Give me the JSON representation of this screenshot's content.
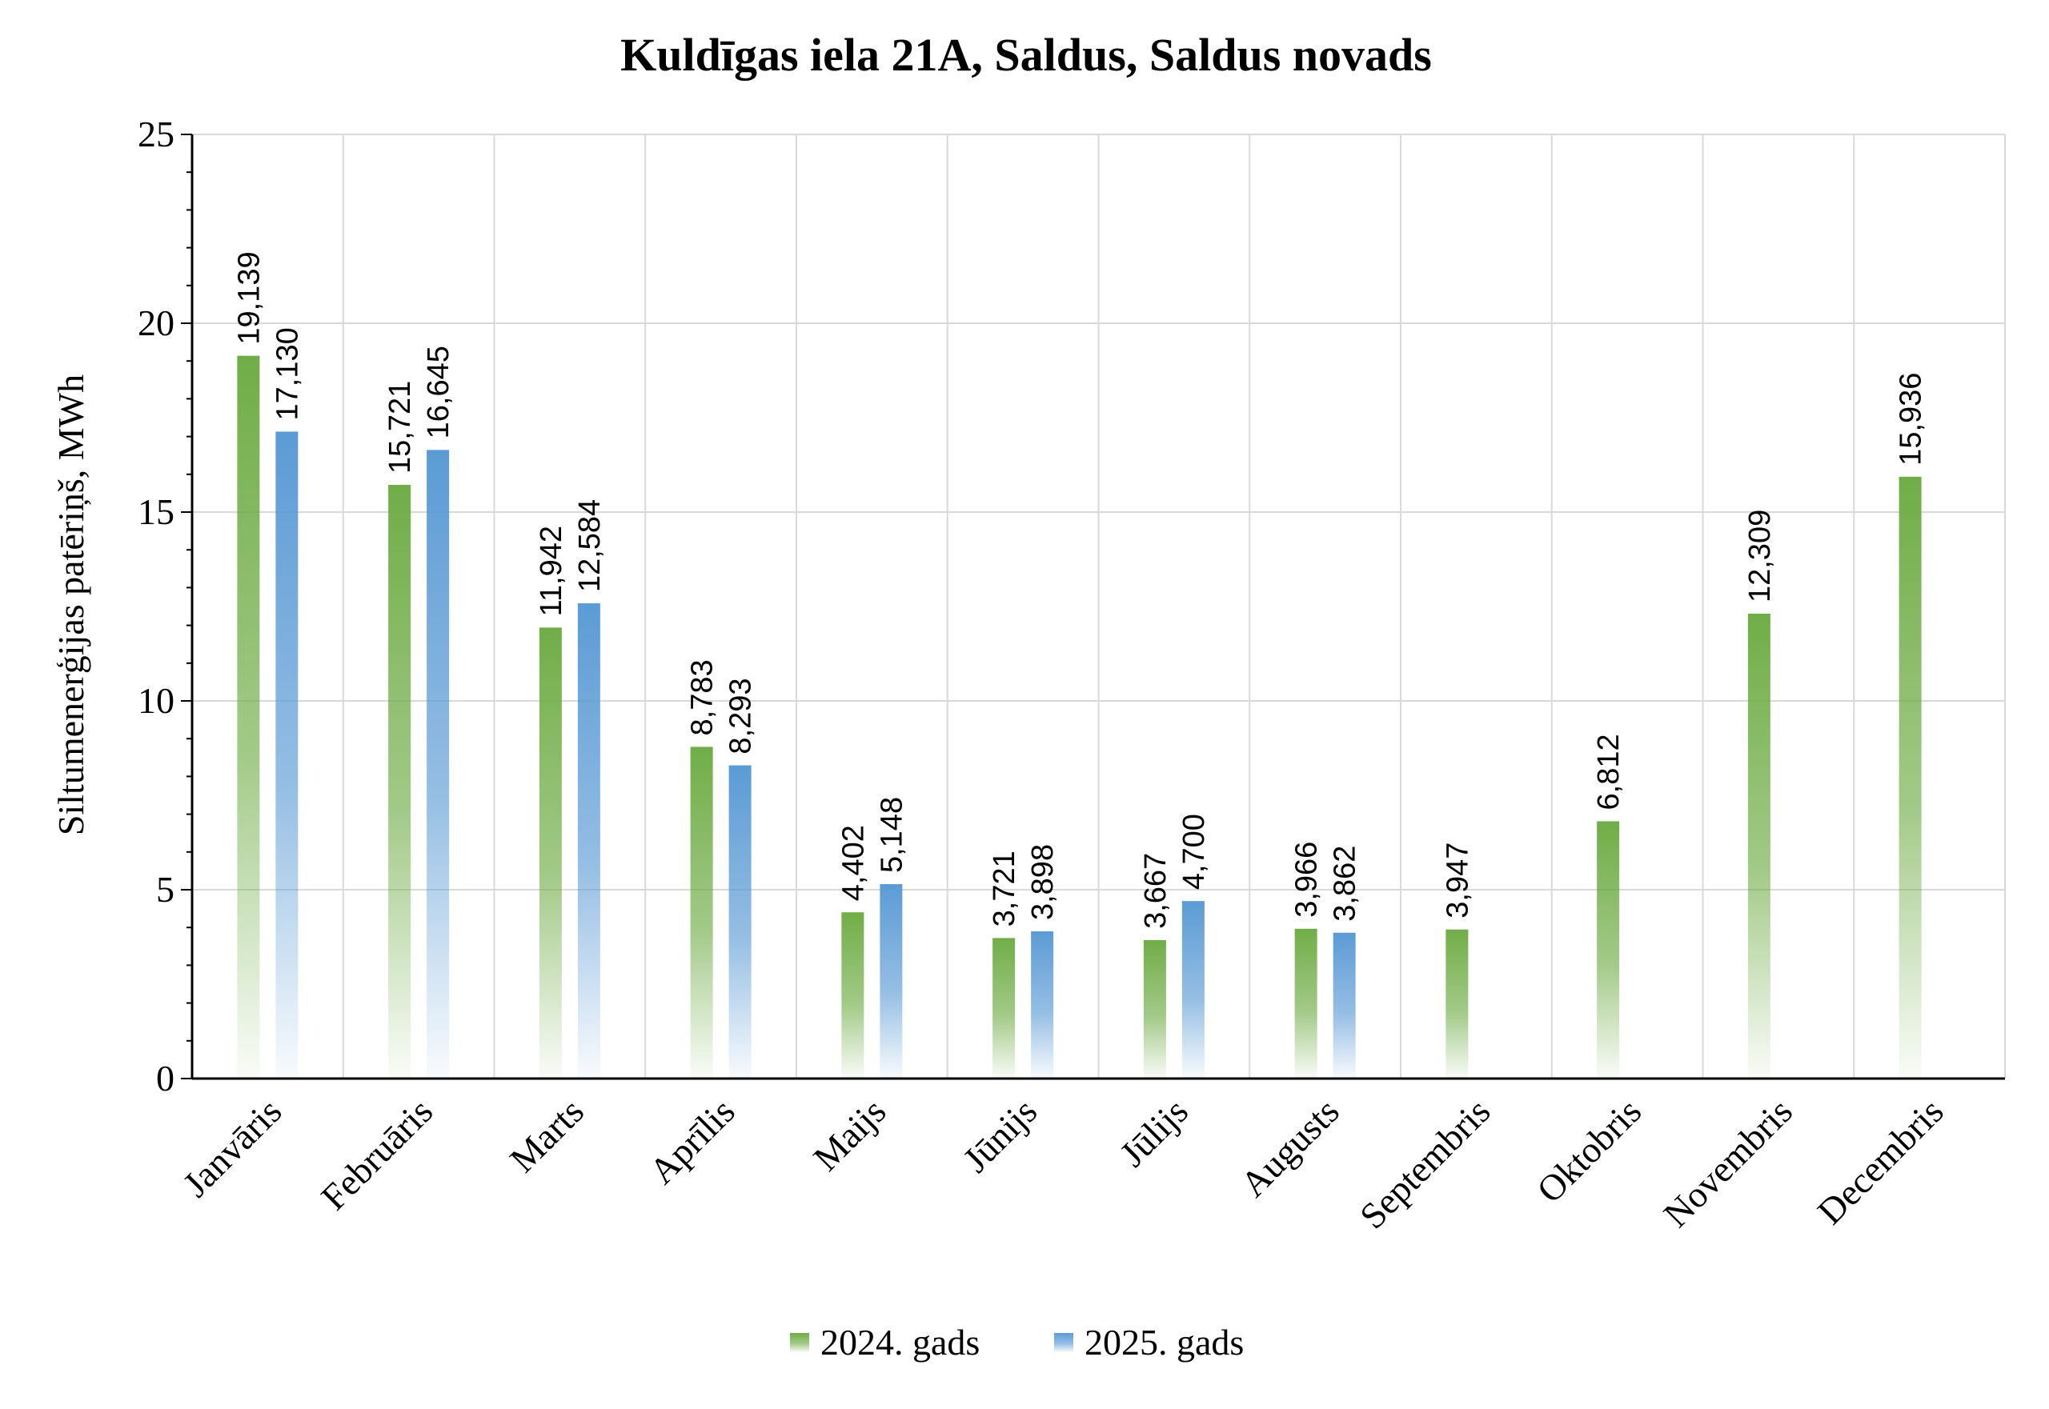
{
  "chart_data": {
    "type": "bar",
    "title": "Kuldīgas iela 21A, Saldus, Saldus novads",
    "ylabel": "Siltumenerģijas patēriņš, MWh",
    "xlabel": "",
    "ylim": [
      0,
      25
    ],
    "yticks": [
      0,
      5,
      10,
      15,
      20,
      25
    ],
    "grid": true,
    "legend_position": "bottom",
    "categories": [
      "Janvāris",
      "Februāris",
      "Marts",
      "Aprīlis",
      "Maijs",
      "Jūnijs",
      "Jūlijs",
      "Augusts",
      "Septembris",
      "Oktobris",
      "Novembris",
      "Decembris"
    ],
    "series": [
      {
        "name": "2024. gads",
        "color": "#70ad47",
        "values": [
          19.139,
          15.721,
          11.942,
          8.783,
          4.402,
          3.721,
          3.667,
          3.966,
          3.947,
          6.812,
          12.309,
          15.936
        ],
        "labels": [
          "19,139",
          "15,721",
          "11,942",
          "8,783",
          "4,402",
          "3,721",
          "3,667",
          "3,966",
          "3,947",
          "6,812",
          "12,309",
          "15,936"
        ]
      },
      {
        "name": "2025. gads",
        "color": "#5b9bd5",
        "values": [
          17.13,
          16.645,
          12.584,
          8.293,
          5.148,
          3.898,
          4.7,
          3.862,
          null,
          null,
          null,
          null
        ],
        "labels": [
          "17,130",
          "16,645",
          "12,584",
          "8,293",
          "5,148",
          "3,898",
          "4,700",
          "3,862",
          "",
          "",
          "",
          ""
        ]
      }
    ]
  }
}
